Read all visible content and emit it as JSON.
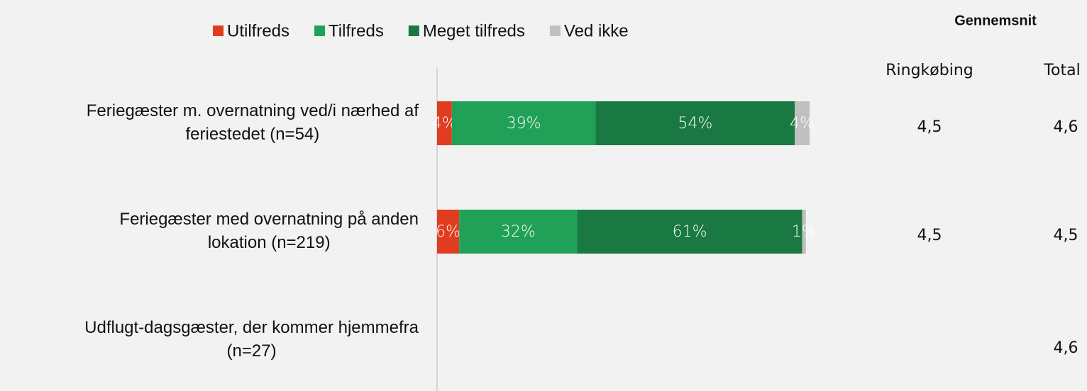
{
  "chart_data": {
    "type": "stacked-bar-horizontal",
    "categories": [
      [
        "Feriegæster m. overnatning ved/i nærhed af",
        "feriestedet (n=54)"
      ],
      [
        "Feriegæster med overnatning på anden",
        "lokation (n=219)"
      ],
      [
        "Udflugt-dagsgæster, der kommer hjemmefra",
        "(n=27)"
      ]
    ],
    "series": [
      {
        "name": "Utilfreds",
        "color": "#e03c1f",
        "values": [
          4,
          6,
          null
        ],
        "value_labels": [
          "4%",
          "6%",
          null
        ]
      },
      {
        "name": "Tilfreds",
        "color": "#21a057",
        "values": [
          39,
          32,
          null
        ],
        "value_labels": [
          "39%",
          "32%",
          null
        ]
      },
      {
        "name": "Meget tilfreds",
        "color": "#1a7842",
        "values": [
          54,
          61,
          null
        ],
        "value_labels": [
          "54%",
          "61%",
          null
        ]
      },
      {
        "name": "Ved ikke",
        "color": "#c0c0c0",
        "values": [
          4,
          1,
          null
        ],
        "value_labels": [
          "4%",
          "1%",
          null
        ]
      }
    ],
    "averages": {
      "title": "Gennemsnit",
      "columns": [
        "Ringkøbing",
        "Total"
      ],
      "rows": [
        [
          "4,5",
          "4,6"
        ],
        [
          "4,5",
          "4,5"
        ],
        [
          null,
          "4,6"
        ]
      ]
    }
  }
}
